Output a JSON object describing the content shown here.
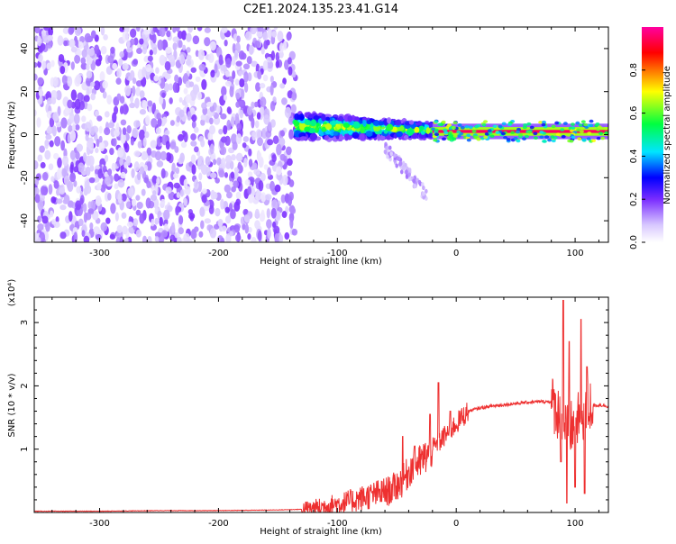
{
  "figure_title": "C2E1.2024.135.23.41.G14",
  "chart_data": [
    {
      "type": "heatmap",
      "panel": "top",
      "title": "C2E1.2024.135.23.41.G14",
      "xlabel": "Height of straight line (km)",
      "ylabel": "Frequency (Hz)",
      "xlim": [
        -355,
        128
      ],
      "ylim": [
        -50,
        50
      ],
      "x_ticks": [
        -300,
        -200,
        -100,
        0,
        100
      ],
      "y_ticks": [
        -40,
        -20,
        0,
        20,
        40
      ],
      "x_tick_labels": [
        "-300",
        "-200",
        "-100",
        "0",
        "100"
      ],
      "y_tick_labels": [
        "-40",
        "-20",
        "0",
        "20",
        "40"
      ],
      "colorbar": {
        "label": "Normalized spectral amplitude",
        "range": [
          0,
          1
        ],
        "ticks": [
          0.0,
          0.2,
          0.4,
          0.6,
          0.8
        ],
        "tick_labels": [
          "0.0",
          "0.2",
          "0.4",
          "0.6",
          "0.8"
        ],
        "colormap": [
          "#ffffff",
          "#d8c8ff",
          "#7a2cff",
          "#0000ff",
          "#00e5ff",
          "#00ff40",
          "#ffff00",
          "#ff0000",
          "#ff00a0"
        ]
      },
      "regions": [
        {
          "x_range": [
            -355,
            -135
          ],
          "freq_range": [
            -50,
            50
          ],
          "amplitude": [
            0.05,
            0.25
          ],
          "pattern": "broadband noise"
        },
        {
          "x_range": [
            -135,
            -20
          ],
          "freq_center": 4,
          "freq_halfwidth": 6,
          "amplitude": [
            0.2,
            0.75
          ],
          "pattern": "narrowing band"
        },
        {
          "x_range": [
            -60,
            -25
          ],
          "freq_center": -18,
          "freq_halfwidth": 10,
          "amplitude": [
            0.1,
            0.2
          ],
          "pattern": "downward streak"
        },
        {
          "x_range": [
            -20,
            128
          ],
          "freq_center": 1.5,
          "freq_halfwidth": 2,
          "amplitude": [
            0.6,
            0.95
          ],
          "pattern": "narrow carrier line"
        }
      ]
    },
    {
      "type": "line",
      "panel": "bottom",
      "xlabel": "Height of straight line (km)",
      "ylabel": "SNR (10 * v/v)",
      "y_multiplier": "(x10⁴)",
      "xlim": [
        -355,
        128
      ],
      "ylim": [
        0,
        3.4
      ],
      "x_ticks": [
        -300,
        -200,
        -100,
        0,
        100
      ],
      "y_ticks": [
        1,
        2,
        3
      ],
      "x_tick_labels": [
        "-300",
        "-200",
        "-100",
        "0",
        "100"
      ],
      "y_tick_labels": [
        "1",
        "2",
        "3"
      ],
      "line_color": "#ee3030",
      "series": [
        {
          "x": [
            -355,
            -300,
            -250,
            -200,
            -150,
            -130,
            -115,
            -105,
            -95,
            -85,
            -75,
            -65,
            -55,
            -45,
            -38,
            -30,
            -25,
            -20,
            -15,
            -10,
            -5,
            0,
            5,
            10,
            20,
            30,
            40,
            50,
            60,
            70,
            80,
            85,
            90,
            95,
            100,
            105,
            110,
            115,
            120,
            128
          ],
          "y": [
            0.02,
            0.02,
            0.03,
            0.03,
            0.04,
            0.05,
            0.08,
            0.12,
            0.15,
            0.2,
            0.25,
            0.3,
            0.35,
            0.5,
            0.7,
            0.8,
            0.9,
            1.0,
            1.1,
            1.2,
            1.3,
            1.4,
            1.5,
            1.6,
            1.65,
            1.68,
            1.7,
            1.72,
            1.74,
            1.75,
            1.75,
            1.6,
            1.4,
            1.3,
            1.4,
            1.5,
            1.65,
            1.68,
            1.7,
            1.68
          ]
        }
      ],
      "spikes": [
        {
          "x": -45,
          "y": 1.2
        },
        {
          "x": -35,
          "y": 1.05
        },
        {
          "x": -22,
          "y": 1.55
        },
        {
          "x": -15,
          "y": 2.05
        },
        {
          "x": -5,
          "y": 1.6
        },
        {
          "x": 90,
          "y": 3.35
        },
        {
          "x": 95,
          "y": 2.7
        },
        {
          "x": 105,
          "y": 3.05
        },
        {
          "x": 110,
          "y": 2.3
        }
      ],
      "dips": [
        {
          "x": 88,
          "y": 0.8
        },
        {
          "x": 93,
          "y": 0.15
        },
        {
          "x": 100,
          "y": 0.4
        },
        {
          "x": 108,
          "y": 0.3
        }
      ]
    }
  ]
}
